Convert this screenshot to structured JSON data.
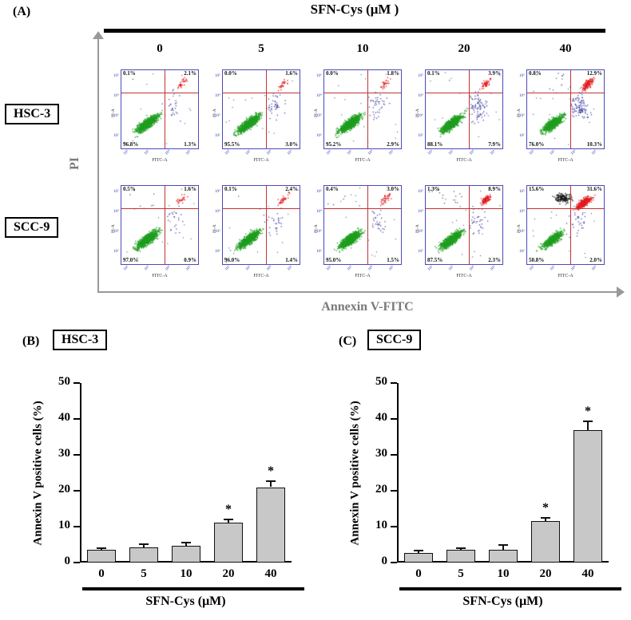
{
  "panelA": {
    "label": "(A)",
    "title": "SFN-Cys (μM )",
    "concentrations": [
      "0",
      "5",
      "10",
      "20",
      "40"
    ],
    "row_labels": [
      "HSC-3",
      "SCC-9"
    ],
    "y_axis_label": "PI",
    "x_axis_label": "Annexin V-FITC",
    "plot_axis": {
      "y_label": "PI-A",
      "x_label": "FITC-A",
      "y_ticks": [
        "10⁵",
        "10⁴",
        "10³",
        "10²"
      ],
      "x_ticks": [
        "10²",
        "10³",
        "10⁴",
        "10⁵"
      ]
    },
    "plots": [
      {
        "row": "HSC-3",
        "conc": "0",
        "ul": "0.1%",
        "ur": "2.1%",
        "ll": "96.8%",
        "lr": "1.3%"
      },
      {
        "row": "HSC-3",
        "conc": "5",
        "ul": "0.0%",
        "ur": "1.6%",
        "ll": "95.5%",
        "lr": "3.0%"
      },
      {
        "row": "HSC-3",
        "conc": "10",
        "ul": "0.0%",
        "ur": "1.8%",
        "ll": "95.2%",
        "lr": "2.9%"
      },
      {
        "row": "HSC-3",
        "conc": "20",
        "ul": "0.1%",
        "ur": "3.9%",
        "ll": "88.1%",
        "lr": "7.9%"
      },
      {
        "row": "HSC-3",
        "conc": "40",
        "ul": "0.8%",
        "ur": "12.9%",
        "ll": "76.0%",
        "lr": "10.3%"
      },
      {
        "row": "SCC-9",
        "conc": "0",
        "ul": "0.5%",
        "ur": "1.6%",
        "ll": "97.0%",
        "lr": "0.9%"
      },
      {
        "row": "SCC-9",
        "conc": "5",
        "ul": "0.1%",
        "ur": "2.4%",
        "ll": "96.0%",
        "lr": "1.4%"
      },
      {
        "row": "SCC-9",
        "conc": "10",
        "ul": "0.4%",
        "ur": "3.0%",
        "ll": "95.0%",
        "lr": "1.5%"
      },
      {
        "row": "SCC-9",
        "conc": "20",
        "ul": "1.3%",
        "ur": "8.9%",
        "ll": "87.5%",
        "lr": "2.3%"
      },
      {
        "row": "SCC-9",
        "conc": "40",
        "ul": "15.6%",
        "ur": "31.6%",
        "ll": "50.8%",
        "lr": "2.0%"
      }
    ]
  },
  "panelB": {
    "label": "(B)",
    "title": "HSC-3"
  },
  "panelC": {
    "label": "(C)",
    "title": "SCC-9"
  },
  "chart_data": [
    {
      "type": "scatter",
      "name": "flow-cytometry-annexin-pi",
      "x_label": "Annexin V-FITC",
      "y_label": "PI",
      "rows": [
        "HSC-3",
        "SCC-9"
      ],
      "concentrations_uM": [
        0,
        5,
        10,
        20,
        40
      ],
      "quadrant_order": [
        "upper_left",
        "upper_right",
        "lower_left",
        "lower_right"
      ],
      "quadrant_percentages": {
        "HSC-3": [
          [
            0.1,
            2.1,
            96.8,
            1.3
          ],
          [
            0.0,
            1.6,
            95.5,
            3.0
          ],
          [
            0.0,
            1.8,
            95.2,
            2.9
          ],
          [
            0.1,
            3.9,
            88.1,
            7.9
          ],
          [
            0.8,
            12.9,
            76.0,
            10.3
          ]
        ],
        "SCC-9": [
          [
            0.5,
            1.6,
            97.0,
            0.9
          ],
          [
            0.1,
            2.4,
            96.0,
            1.4
          ],
          [
            0.4,
            3.0,
            95.0,
            1.5
          ],
          [
            1.3,
            8.9,
            87.5,
            2.3
          ],
          [
            15.6,
            31.6,
            50.8,
            2.0
          ]
        ]
      }
    },
    {
      "type": "bar",
      "panel": "(B)",
      "title": "HSC-3",
      "ylabel": "Annexin V positive cells (%)",
      "xlabel": "SFN-Cys (μM)",
      "categories": [
        "0",
        "5",
        "10",
        "20",
        "40"
      ],
      "values": [
        3.5,
        4.2,
        4.7,
        11.2,
        21.0
      ],
      "errors": [
        0.5,
        1.0,
        0.9,
        0.8,
        1.6
      ],
      "significant": [
        false,
        false,
        false,
        true,
        true
      ],
      "sig_symbol": "*",
      "ylim": [
        0,
        50
      ],
      "yticks": [
        0,
        10,
        20,
        30,
        40,
        50
      ],
      "bar_color": "#c8c8c8"
    },
    {
      "type": "bar",
      "panel": "(C)",
      "title": "SCC-9",
      "ylabel": "Annexin V positive cells (%)",
      "xlabel": "SFN-Cys (μM)",
      "categories": [
        "0",
        "5",
        "10",
        "20",
        "40"
      ],
      "values": [
        2.7,
        3.5,
        3.6,
        11.5,
        36.8
      ],
      "errors": [
        0.6,
        0.5,
        1.3,
        1.0,
        2.6
      ],
      "significant": [
        false,
        false,
        false,
        true,
        true
      ],
      "sig_symbol": "*",
      "ylim": [
        0,
        50
      ],
      "yticks": [
        0,
        10,
        20,
        30,
        40,
        50
      ],
      "bar_color": "#c8c8c8"
    }
  ]
}
